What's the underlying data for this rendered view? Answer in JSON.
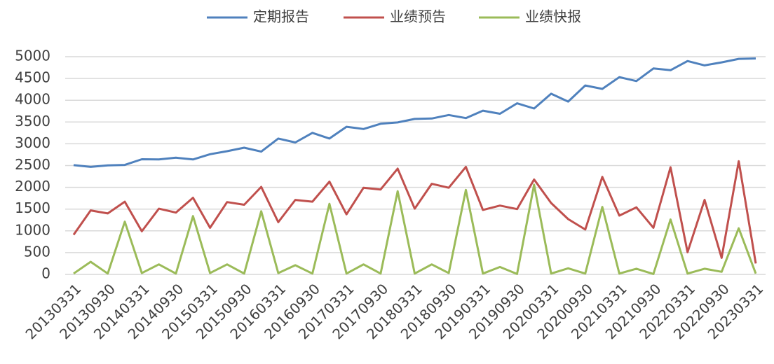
{
  "chart_data": {
    "type": "line",
    "categories": [
      "20130331",
      null,
      "20130930",
      null,
      "20140331",
      null,
      "20140930",
      null,
      "20150331",
      null,
      "20150930",
      null,
      "20160331",
      null,
      "20160930",
      null,
      "20170331",
      null,
      "20170930",
      null,
      "20180331",
      null,
      "20180930",
      null,
      "20190331",
      null,
      "20190930",
      null,
      "20200331",
      null,
      "20200930",
      null,
      "20210331",
      null,
      "20210930",
      null,
      "20220331",
      null,
      "20220930",
      null,
      "20230331"
    ],
    "series": [
      {
        "name": "定期报告",
        "color": "#4f81bd",
        "values": [
          2510,
          2470,
          2505,
          2515,
          2645,
          2640,
          2680,
          2640,
          2760,
          2830,
          2910,
          2820,
          3120,
          3030,
          3250,
          3120,
          3390,
          3340,
          3460,
          3490,
          3570,
          3580,
          3660,
          3590,
          3760,
          3690,
          3930,
          3810,
          4150,
          3970,
          4340,
          4260,
          4530,
          4440,
          4730,
          4690,
          4900,
          4800,
          4870,
          4950,
          4960
        ]
      },
      {
        "name": "业绩预告",
        "color": "#c0504d",
        "values": [
          910,
          1470,
          1400,
          1670,
          990,
          1510,
          1420,
          1760,
          1070,
          1660,
          1600,
          2010,
          1200,
          1710,
          1670,
          2130,
          1380,
          1990,
          1950,
          2430,
          1510,
          2080,
          1990,
          2470,
          1480,
          1580,
          1500,
          2180,
          1640,
          1270,
          1030,
          2240,
          1350,
          1540,
          1070,
          2460,
          510,
          1710,
          380,
          2600,
          250
        ]
      },
      {
        "name": "业绩快报",
        "color": "#9bbb59",
        "values": [
          20,
          290,
          20,
          1210,
          30,
          230,
          20,
          1340,
          30,
          230,
          20,
          1450,
          30,
          210,
          20,
          1620,
          20,
          230,
          20,
          1910,
          20,
          230,
          30,
          1940,
          20,
          170,
          10,
          2060,
          20,
          140,
          20,
          1550,
          20,
          130,
          10,
          1260,
          20,
          130,
          60,
          1060,
          20
        ]
      }
    ],
    "ylim": [
      0,
      5000
    ],
    "yticks": [
      0,
      500,
      1000,
      1500,
      2000,
      2500,
      3000,
      3500,
      4000,
      4500,
      5000
    ],
    "grid": true,
    "legend": "top"
  }
}
